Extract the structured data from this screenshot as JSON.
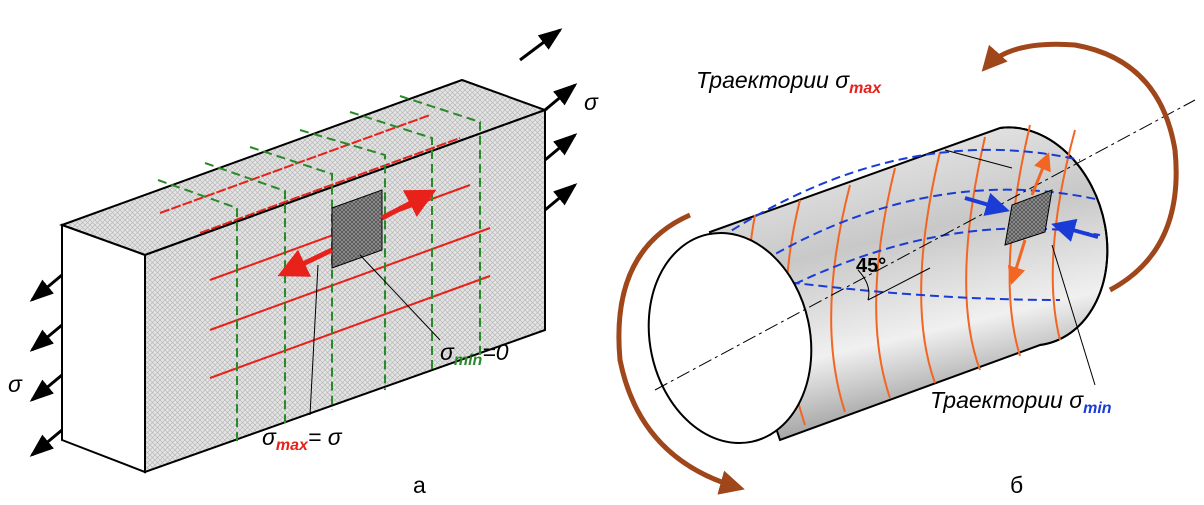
{
  "panel_a": {
    "label": "а",
    "sigma_right": "σ",
    "sigma_left": "σ",
    "sigma_min_label": {
      "symbol": "σ",
      "subscript": "min",
      "suffix": "=0"
    },
    "sigma_max_label": {
      "symbol": "σ",
      "subscript": "max",
      "suffix": "= σ"
    }
  },
  "panel_b": {
    "label": "б",
    "angle": "45°",
    "trajectory_max": {
      "text": "Траектории σ",
      "subscript": "max"
    },
    "trajectory_min": {
      "text": "Траектории σ",
      "subscript": "min"
    }
  }
}
